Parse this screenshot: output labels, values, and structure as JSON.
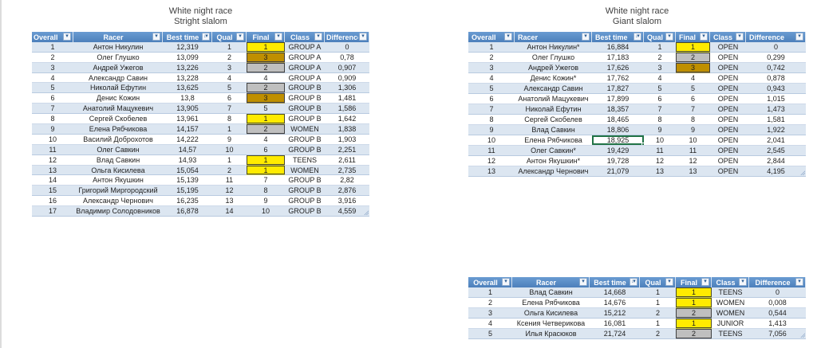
{
  "titles": {
    "left": {
      "line1": "White night race",
      "line2": "Stright slalom"
    },
    "right": {
      "line1": "White night race",
      "line2": "Giant slalom"
    }
  },
  "headers": [
    "Overall",
    "Racer",
    "Best time",
    "Qual",
    "Final",
    "Class",
    "Difference"
  ],
  "icons": {
    "dropdown": "▾",
    "sort": "↓"
  },
  "colors": {
    "header_blue": "#4d80bb",
    "band_blue": "#dce6f1",
    "gold": "#ffeb00",
    "silver": "#bfbfbf",
    "bronze": "#bf8f00",
    "active_cell_border": "#217346"
  },
  "tables": {
    "slalom": {
      "rows": [
        {
          "overall": "1",
          "racer": "Антон Никулин",
          "best": "12,319",
          "qual": "1",
          "final": "1",
          "medal": "gold",
          "class": "GROUP A",
          "diff": "0"
        },
        {
          "overall": "2",
          "racer": "Олег Глушко",
          "best": "13,099",
          "qual": "2",
          "final": "3",
          "medal": "bronze",
          "class": "GROUP A",
          "diff": "0,78"
        },
        {
          "overall": "3",
          "racer": "Андрей Ужегов",
          "best": "13,226",
          "qual": "3",
          "final": "2",
          "medal": "silver",
          "class": "GROUP A",
          "diff": "0,907"
        },
        {
          "overall": "4",
          "racer": "Александр Савин",
          "best": "13,228",
          "qual": "4",
          "final": "4",
          "class": "GROUP A",
          "diff": "0,909"
        },
        {
          "overall": "5",
          "racer": "Николай Ефутин",
          "best": "13,625",
          "qual": "5",
          "final": "2",
          "medal": "silver",
          "class": "GROUP B",
          "diff": "1,306"
        },
        {
          "overall": "6",
          "racer": "Денис Кожин",
          "best": "13,8",
          "qual": "6",
          "final": "3",
          "medal": "bronze",
          "class": "GROUP B",
          "diff": "1,481"
        },
        {
          "overall": "7",
          "racer": "Анатолий Мацукевич",
          "best": "13,905",
          "qual": "7",
          "final": "5",
          "class": "GROUP B",
          "diff": "1,586"
        },
        {
          "overall": "8",
          "racer": "Сергей Скобелев",
          "best": "13,961",
          "qual": "8",
          "final": "1",
          "medal": "gold",
          "class": "GROUP B",
          "diff": "1,642"
        },
        {
          "overall": "9",
          "racer": "Елена Рябчикова",
          "best": "14,157",
          "qual": "1",
          "final": "2",
          "medal": "silver",
          "class": "WOMEN",
          "diff": "1,838"
        },
        {
          "overall": "10",
          "racer": "Василий Доброхотов",
          "best": "14,222",
          "qual": "9",
          "final": "4",
          "class": "GROUP B",
          "diff": "1,903"
        },
        {
          "overall": "11",
          "racer": "Олег Савкин",
          "best": "14,57",
          "qual": "10",
          "final": "6",
          "class": "GROUP B",
          "diff": "2,251"
        },
        {
          "overall": "12",
          "racer": "Влад Савкин",
          "best": "14,93",
          "qual": "1",
          "final": "1",
          "medal": "gold",
          "class": "TEENS",
          "diff": "2,611"
        },
        {
          "overall": "13",
          "racer": "Ольга Кисилева",
          "best": "15,054",
          "qual": "2",
          "final": "1",
          "medal": "gold",
          "class": "WOMEN",
          "diff": "2,735"
        },
        {
          "overall": "14",
          "racer": "Антон Якушкин",
          "best": "15,139",
          "qual": "11",
          "final": "7",
          "class": "GROUP B",
          "diff": "2,82"
        },
        {
          "overall": "15",
          "racer": "Григорий Миргородский",
          "best": "15,195",
          "qual": "12",
          "final": "8",
          "class": "GROUP B",
          "diff": "2,876"
        },
        {
          "overall": "16",
          "racer": "Александр Чернович",
          "best": "16,235",
          "qual": "13",
          "final": "9",
          "class": "GROUP B",
          "diff": "3,916"
        },
        {
          "overall": "17",
          "racer": "Владимир Солодовников",
          "best": "16,878",
          "qual": "14",
          "final": "10",
          "class": "GROUP B",
          "diff": "4,559"
        }
      ]
    },
    "giant": {
      "rows": [
        {
          "overall": "1",
          "racer": "Антон Никулин*",
          "best": "16,884",
          "qual": "1",
          "final": "1",
          "medal": "gold",
          "class": "OPEN",
          "diff": "0"
        },
        {
          "overall": "2",
          "racer": "Олег Глушко",
          "best": "17,183",
          "qual": "2",
          "final": "2",
          "medal": "silver",
          "class": "OPEN",
          "diff": "0,299"
        },
        {
          "overall": "3",
          "racer": "Андрей Ужегов",
          "best": "17,626",
          "qual": "3",
          "final": "3",
          "medal": "bronze",
          "class": "OPEN",
          "diff": "0,742"
        },
        {
          "overall": "4",
          "racer": "Денис Кожин*",
          "best": "17,762",
          "qual": "4",
          "final": "4",
          "class": "OPEN",
          "diff": "0,878"
        },
        {
          "overall": "5",
          "racer": "Александр Савин",
          "best": "17,827",
          "qual": "5",
          "final": "5",
          "class": "OPEN",
          "diff": "0,943"
        },
        {
          "overall": "6",
          "racer": "Анатолий Мацукевич",
          "best": "17,899",
          "qual": "6",
          "final": "6",
          "class": "OPEN",
          "diff": "1,015"
        },
        {
          "overall": "7",
          "racer": "Николай Ефутин",
          "best": "18,357",
          "qual": "7",
          "final": "7",
          "class": "OPEN",
          "diff": "1,473"
        },
        {
          "overall": "8",
          "racer": "Сергей Скобелев",
          "best": "18,465",
          "qual": "8",
          "final": "8",
          "class": "OPEN",
          "diff": "1,581"
        },
        {
          "overall": "9",
          "racer": "Влад Савкин",
          "best": "18,806",
          "qual": "9",
          "final": "9",
          "class": "OPEN",
          "diff": "1,922"
        },
        {
          "overall": "10",
          "racer": "Елена Рябчикова",
          "best": "18,925",
          "selected": true,
          "qual": "10",
          "final": "10",
          "class": "OPEN",
          "diff": "2,041"
        },
        {
          "overall": "11",
          "racer": "Олег Савкин*",
          "best": "19,429",
          "qual": "11",
          "final": "11",
          "class": "OPEN",
          "diff": "2,545"
        },
        {
          "overall": "12",
          "racer": "Антон Якушкин*",
          "best": "19,728",
          "qual": "12",
          "final": "12",
          "class": "OPEN",
          "diff": "2,844"
        },
        {
          "overall": "13",
          "racer": "Александр Чернович",
          "best": "21,079",
          "qual": "13",
          "final": "13",
          "class": "OPEN",
          "diff": "4,195"
        }
      ]
    },
    "finals": {
      "rows": [
        {
          "overall": "1",
          "racer": "Влад Савкин",
          "best": "14,668",
          "qual": "1",
          "final": "1",
          "medal": "gold",
          "class": "TEENS",
          "diff": "0"
        },
        {
          "overall": "2",
          "racer": "Елена Рябчикова",
          "best": "14,676",
          "qual": "1",
          "final": "1",
          "medal": "gold",
          "class": "WOMEN",
          "diff": "0,008"
        },
        {
          "overall": "3",
          "racer": "Ольга Кисилева",
          "best": "15,212",
          "qual": "2",
          "final": "2",
          "medal": "silver",
          "class": "WOMEN",
          "diff": "0,544"
        },
        {
          "overall": "4",
          "racer": "Ксения Четверикова",
          "best": "16,081",
          "qual": "1",
          "final": "1",
          "medal": "gold",
          "class": "JUNIOR",
          "diff": "1,413"
        },
        {
          "overall": "5",
          "racer": "Илья Красюков",
          "best": "21,724",
          "qual": "2",
          "final": "2",
          "medal": "silver",
          "class": "TEENS",
          "diff": "7,056"
        }
      ]
    }
  }
}
